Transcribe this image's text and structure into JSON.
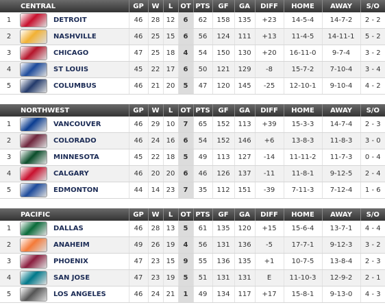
{
  "divisions": [
    {
      "header": [
        "CENTRAL",
        "GP",
        "W",
        "L",
        "OT",
        "PTS",
        "GF",
        "GA",
        "DIFF",
        "HOME",
        "AWAY",
        "S/O"
      ],
      "rows": [
        [
          "1",
          "DETROIT",
          "46",
          "28",
          "12",
          "6",
          "62",
          "158",
          "135",
          "+23",
          "14-5-4",
          "14-7-2",
          "2 - 2"
        ],
        [
          "2",
          "NASHVILLE",
          "46",
          "25",
          "15",
          "6",
          "56",
          "124",
          "111",
          "+13",
          "11-4-5",
          "14-11-1",
          "5 - 2"
        ],
        [
          "3",
          "CHICAGO",
          "47",
          "25",
          "18",
          "4",
          "54",
          "150",
          "130",
          "+20",
          "16-11-0",
          "9-7-4",
          "3 - 2"
        ],
        [
          "4",
          "ST LOUIS",
          "45",
          "22",
          "17",
          "6",
          "50",
          "121",
          "129",
          "-8",
          "15-7-2",
          "7-10-4",
          "3 - 4"
        ],
        [
          "5",
          "COLUMBUS",
          "46",
          "21",
          "20",
          "5",
          "47",
          "120",
          "145",
          "-25",
          "12-10-1",
          "9-10-4",
          "4 - 2"
        ]
      ]
    },
    {
      "header": [
        "NORTHWEST",
        "GP",
        "W",
        "L",
        "OT",
        "PTS",
        "GF",
        "GA",
        "DIFF",
        "HOME",
        "AWAY",
        "S/O"
      ],
      "rows": [
        [
          "1",
          "VANCOUVER",
          "46",
          "29",
          "10",
          "7",
          "65",
          "152",
          "113",
          "+39",
          "15-3-3",
          "14-7-4",
          "2 - 3"
        ],
        [
          "2",
          "COLORADO",
          "46",
          "24",
          "16",
          "6",
          "54",
          "152",
          "146",
          "+6",
          "13-8-3",
          "11-8-3",
          "3 - 0"
        ],
        [
          "3",
          "MINNESOTA",
          "45",
          "22",
          "18",
          "5",
          "49",
          "113",
          "127",
          "-14",
          "11-11-2",
          "11-7-3",
          "0 - 4"
        ],
        [
          "4",
          "CALGARY",
          "46",
          "20",
          "20",
          "6",
          "46",
          "126",
          "137",
          "-11",
          "11-8-1",
          "9-12-5",
          "2 - 4"
        ],
        [
          "5",
          "EDMONTON",
          "44",
          "14",
          "23",
          "7",
          "35",
          "112",
          "151",
          "-39",
          "7-11-3",
          "7-12-4",
          "1 - 6"
        ]
      ]
    },
    {
      "header": [
        "PACIFIC",
        "GP",
        "W",
        "L",
        "OT",
        "PTS",
        "GF",
        "GA",
        "DIFF",
        "HOME",
        "AWAY",
        "S/O"
      ],
      "rows": [
        [
          "1",
          "DALLAS",
          "46",
          "28",
          "13",
          "5",
          "61",
          "135",
          "120",
          "+15",
          "15-6-4",
          "13-7-1",
          "4 - 4"
        ],
        [
          "2",
          "ANAHEIM",
          "49",
          "26",
          "19",
          "4",
          "56",
          "131",
          "136",
          "-5",
          "17-7-1",
          "9-12-3",
          "3 - 2"
        ],
        [
          "3",
          "PHOENIX",
          "47",
          "23",
          "15",
          "9",
          "55",
          "136",
          "135",
          "+1",
          "10-7-5",
          "13-8-4",
          "2 - 3"
        ],
        [
          "4",
          "SAN JOSE",
          "47",
          "23",
          "19",
          "5",
          "51",
          "131",
          "131",
          "E",
          "11-10-3",
          "12-9-2",
          "2 - 1"
        ],
        [
          "5",
          "LOS ANGELES",
          "46",
          "24",
          "21",
          "1",
          "49",
          "134",
          "117",
          "+17",
          "15-8-1",
          "9-13-0",
          "4 - 3"
        ]
      ]
    }
  ]
}
